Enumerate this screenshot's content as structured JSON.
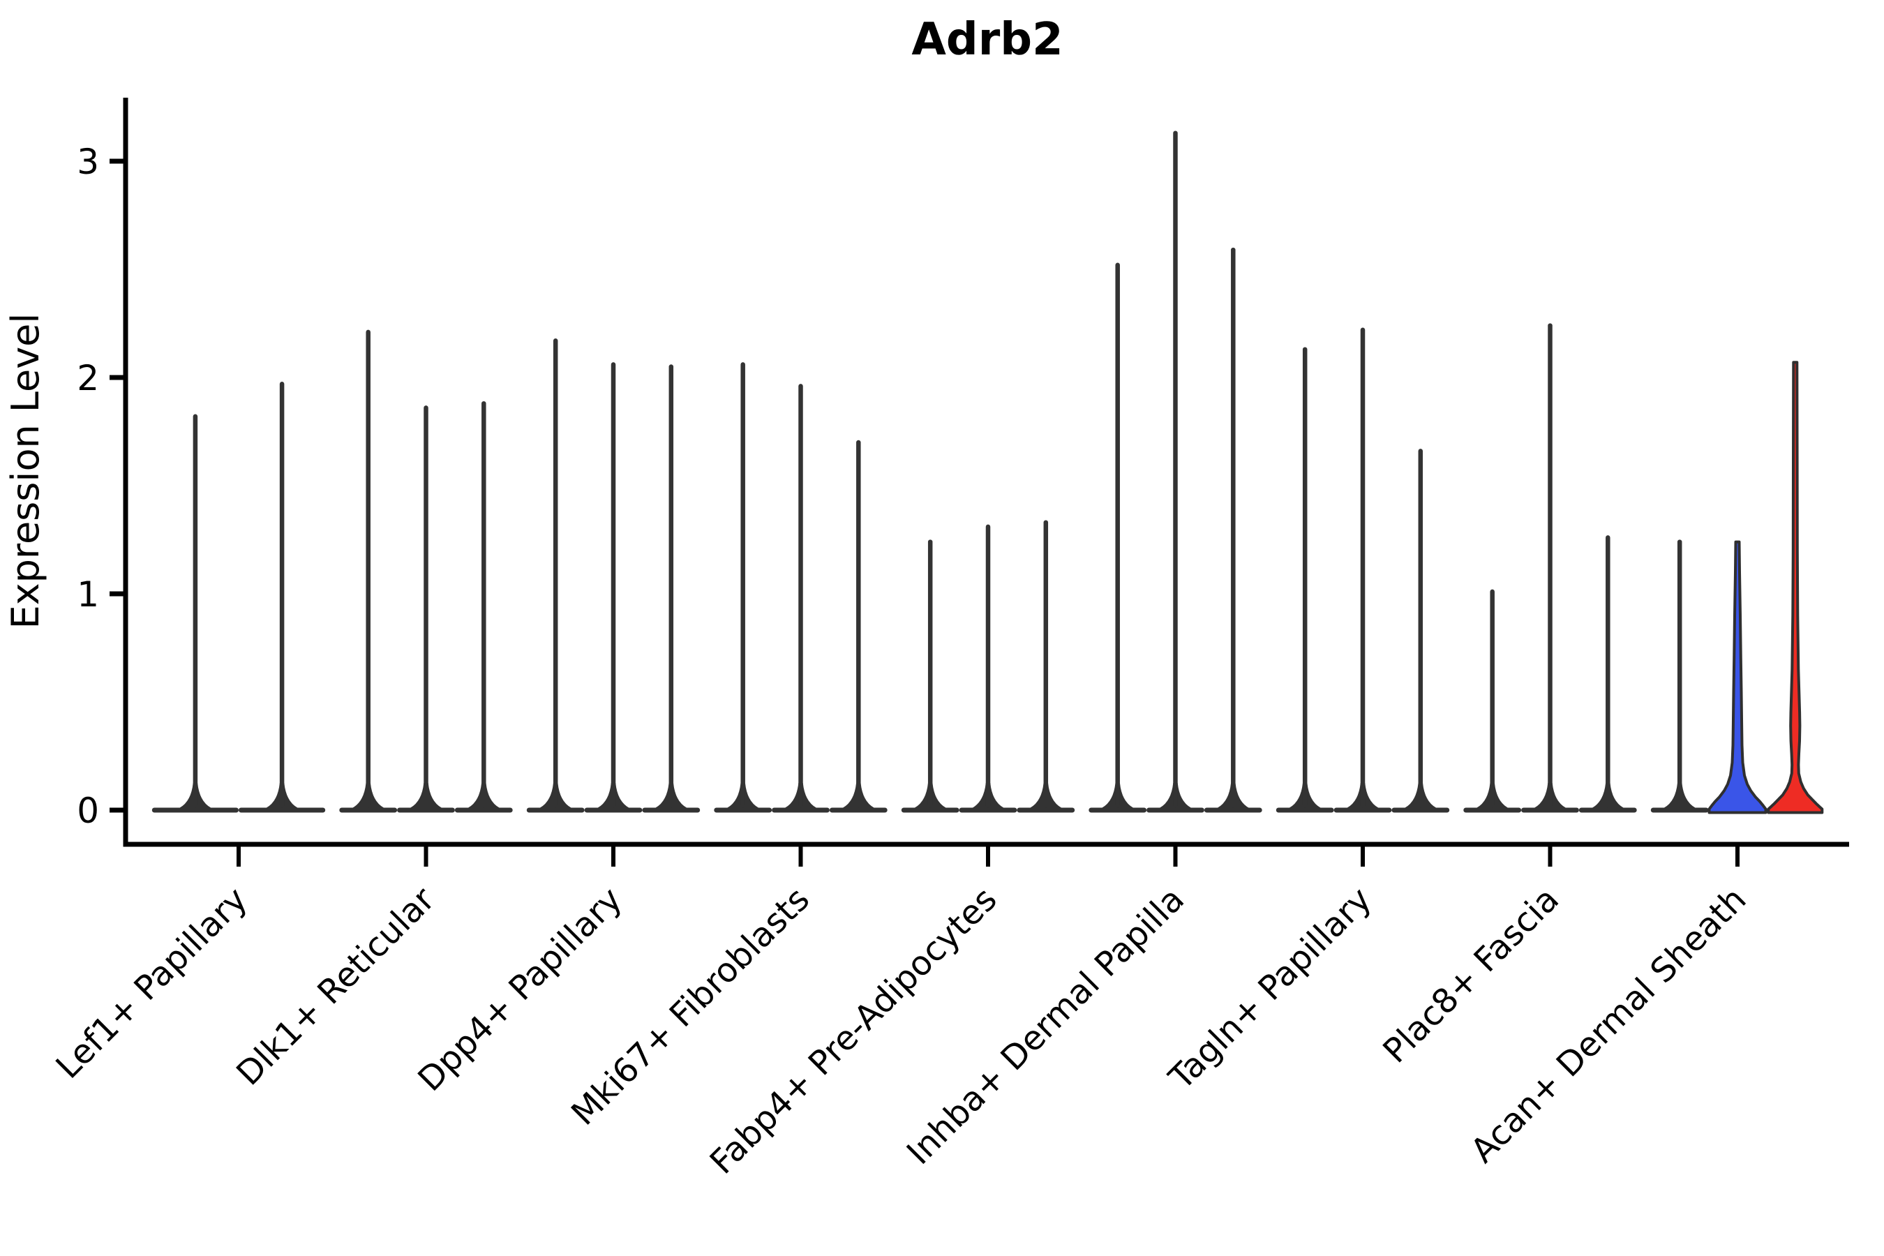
{
  "title": "Adrb2",
  "y_axis": {
    "label": "Expression Level",
    "ticks": [
      0,
      1,
      2,
      3
    ]
  },
  "chart_data": {
    "type": "violin",
    "title": "Adrb2",
    "xlabel": "",
    "ylabel": "Expression Level",
    "ylim": [
      0,
      3.25
    ],
    "grid": false,
    "legend": false,
    "description": "Seurat-style stacked violin plot of Adrb2 expression. Nearly all cells have expression 0 (flat pancake at baseline); each violin shows a thin spike up to its maximum expression value. Last category has a blue and a red filled violin with visible density bodies near 0.",
    "categories": [
      "Lef1+ Papillary",
      "Dlk1+ Reticular",
      "Dpp4+ Papillary",
      "Mki67+ Fibroblasts",
      "Fabp4+ Pre-Adipocytes",
      "Inhba+ Dermal Papilla",
      "Tagln+ Papillary",
      "Plac8+ Fascia",
      "Acan+ Dermal Sheath"
    ],
    "colors": {
      "default_violin": "#333333",
      "blue_violin": "#3A55E8",
      "red_violin": "#EE2C24",
      "violin_outline": "#2F2F2F",
      "axis": "#000000"
    },
    "groups": [
      {
        "category": "Lef1+ Papillary",
        "violins": [
          {
            "max": 1.82
          },
          {
            "max": 1.97
          }
        ]
      },
      {
        "category": "Dlk1+ Reticular",
        "violins": [
          {
            "max": 2.21
          },
          {
            "max": 1.86
          },
          {
            "max": 1.88
          }
        ]
      },
      {
        "category": "Dpp4+ Papillary",
        "violins": [
          {
            "max": 2.17
          },
          {
            "max": 2.06
          },
          {
            "max": 2.05
          }
        ]
      },
      {
        "category": "Mki67+ Fibroblasts",
        "violins": [
          {
            "max": 2.06
          },
          {
            "max": 1.96
          },
          {
            "max": 1.7
          }
        ]
      },
      {
        "category": "Fabp4+ Pre-Adipocytes",
        "violins": [
          {
            "max": 1.24
          },
          {
            "max": 1.31
          },
          {
            "max": 1.33
          }
        ]
      },
      {
        "category": "Inhba+ Dermal Papilla",
        "violins": [
          {
            "max": 2.52
          },
          {
            "max": 3.13
          },
          {
            "max": 2.59
          }
        ]
      },
      {
        "category": "Tagln+ Papillary",
        "violins": [
          {
            "max": 2.13
          },
          {
            "max": 2.22
          },
          {
            "max": 1.66
          }
        ]
      },
      {
        "category": "Plac8+ Fascia",
        "violins": [
          {
            "max": 1.01
          },
          {
            "max": 2.24
          },
          {
            "max": 1.26
          }
        ]
      },
      {
        "category": "Acan+ Dermal Sheath",
        "violins": [
          {
            "max": 1.24
          },
          {
            "max": 1.24,
            "color": "#3A55E8",
            "profile": [
              [
                1.24,
                2.5
              ],
              [
                1.1,
                3.0
              ],
              [
                0.9,
                4.0
              ],
              [
                0.7,
                4.8
              ],
              [
                0.55,
                5.5
              ],
              [
                0.42,
                6.0
              ],
              [
                0.3,
                6.5
              ],
              [
                0.22,
                7.5
              ],
              [
                0.16,
                10.0
              ],
              [
                0.12,
                14.0
              ],
              [
                0.09,
                19.0
              ],
              [
                0.06,
                26.0
              ],
              [
                0.04,
                32.0
              ],
              [
                0.02,
                37.0
              ],
              [
                0.005,
                40.5
              ]
            ]
          },
          {
            "max": 2.07,
            "color": "#EE2C24",
            "profile": [
              [
                2.07,
                2.5
              ],
              [
                1.6,
                2.8
              ],
              [
                1.2,
                3.0
              ],
              [
                0.9,
                3.5
              ],
              [
                0.65,
                4.5
              ],
              [
                0.54,
                5.5
              ],
              [
                0.45,
                6.3
              ],
              [
                0.39,
                6.6
              ],
              [
                0.32,
                6.2
              ],
              [
                0.26,
                5.2
              ],
              [
                0.21,
                4.6
              ],
              [
                0.17,
                5.0
              ],
              [
                0.13,
                8.0
              ],
              [
                0.1,
                12.0
              ],
              [
                0.07,
                18.0
              ],
              [
                0.05,
                24.0
              ],
              [
                0.03,
                30.0
              ],
              [
                0.015,
                35.0
              ],
              [
                0.005,
                38.5
              ]
            ]
          }
        ]
      }
    ]
  }
}
